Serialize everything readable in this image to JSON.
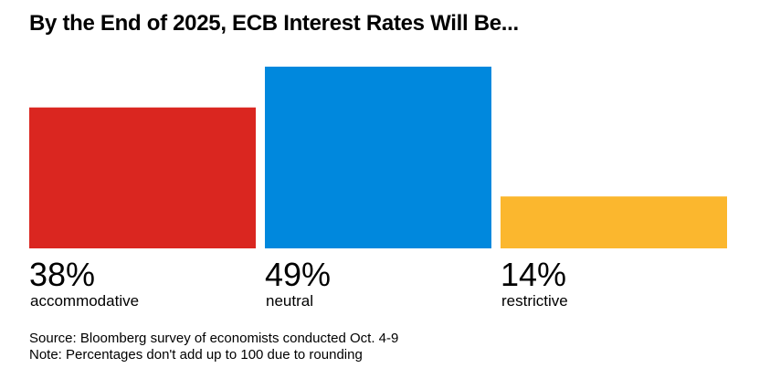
{
  "title": "By the End of 2025, ECB Interest Rates Will Be...",
  "chart_data": {
    "type": "bar",
    "categories": [
      "accommodative",
      "neutral",
      "restrictive"
    ],
    "values": [
      38,
      49,
      14
    ],
    "value_labels": [
      "38%",
      "49%",
      "14%"
    ],
    "colors": [
      "#da2620",
      "#0088dd",
      "#fbb72e"
    ],
    "ylim": [
      0,
      49
    ],
    "grid": false,
    "legend": "none"
  },
  "footer": {
    "source": "Source: Bloomberg survey of economists conducted Oct. 4-9",
    "note": "Note: Percentages don't add up to 100 due to rounding"
  }
}
